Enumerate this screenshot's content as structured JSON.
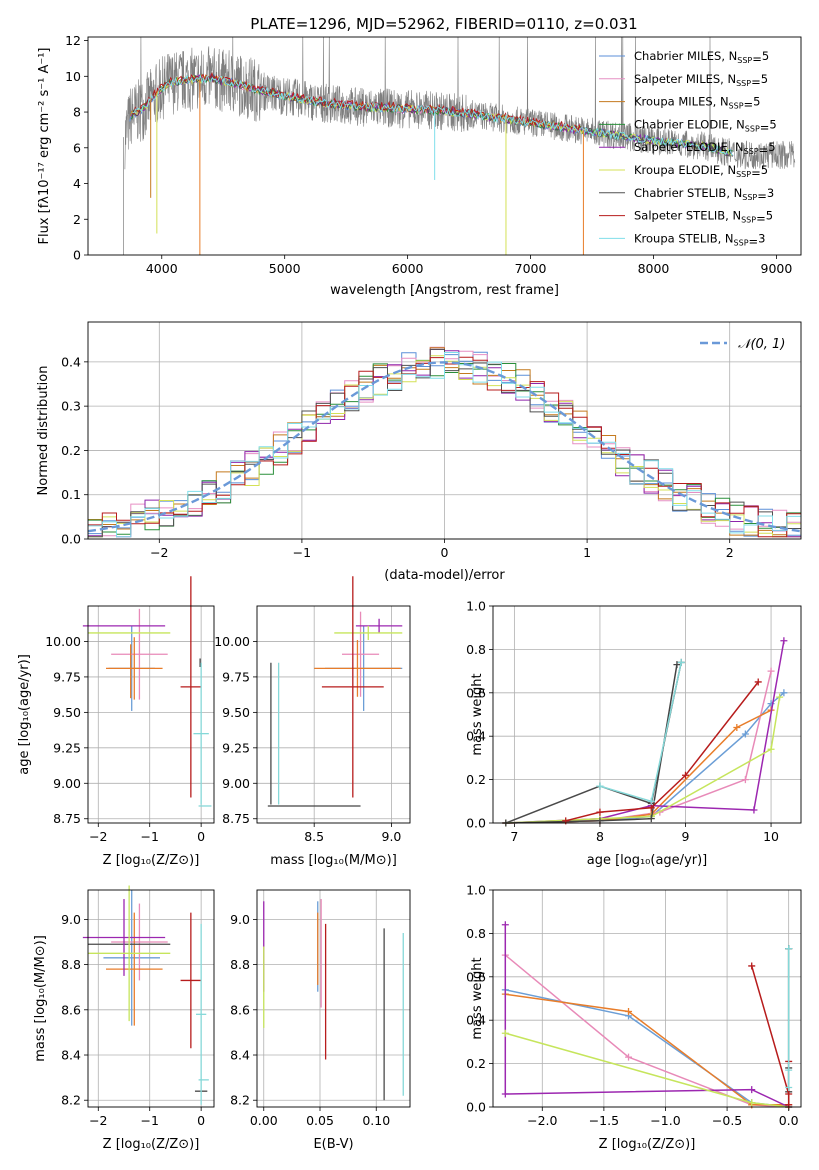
{
  "colors": {
    "series": [
      "#5b8fd8",
      "#e68fc4",
      "#c47a1f",
      "#2a8f3a",
      "#8e24aa",
      "#d4e157",
      "#505050",
      "#b71c1c",
      "#80deea"
    ],
    "panel": [
      "#6b9ed6",
      "#e88ab8",
      "#e87d2a",
      "#4a4a4a",
      "#9c27b0",
      "#c6e55c",
      "#444444",
      "#b71c1c",
      "#85d8d8"
    ],
    "data": "#7f7f7f",
    "gauss": "#6a99d8"
  },
  "chart_data": [
    {
      "type": "line",
      "title": "PLATE=1296, MJD=52962, FIBERID=0110, z=0.031",
      "xlabel": "wavelength [Angstrom, rest frame]",
      "ylabel": "Flux [fλ10⁻¹⁷ erg cm⁻² s⁻¹ A⁻¹]",
      "xlim": [
        3400,
        9200
      ],
      "ylim": [
        0,
        12.2
      ],
      "xticks": [
        "4000",
        "5000",
        "6000",
        "7000",
        "8000",
        "9000"
      ],
      "yticks": [
        "0",
        "2",
        "4",
        "6",
        "8",
        "10",
        "12"
      ],
      "legend": [
        "Chabrier MILES, N",
        "Salpeter MILES, N",
        "Kroupa MILES, N",
        "Chabrier ELODIE, N",
        "Salpeter ELODIE, N",
        "Kroupa ELODIE, N",
        "Chabrier STELIB, N",
        "Salpeter STELIB, N",
        "Kroupa STELIB, N"
      ],
      "legend_nssp": [
        "5",
        "5",
        "5",
        "5",
        "5",
        "5",
        "3",
        "5",
        "3"
      ],
      "continuum": [
        [
          3700,
          6.6
        ],
        [
          3750,
          7.8
        ],
        [
          3850,
          8.2
        ],
        [
          3950,
          9.0
        ],
        [
          4050,
          9.6
        ],
        [
          4200,
          9.8
        ],
        [
          4400,
          9.9
        ],
        [
          4600,
          9.6
        ],
        [
          4800,
          9.2
        ],
        [
          5000,
          8.9
        ],
        [
          5300,
          8.5
        ],
        [
          5600,
          8.3
        ],
        [
          5900,
          8.2
        ],
        [
          6200,
          8.1
        ],
        [
          6500,
          7.9
        ],
        [
          6700,
          7.7
        ],
        [
          7000,
          7.4
        ],
        [
          7300,
          7.1
        ],
        [
          7600,
          6.8
        ],
        [
          8000,
          6.4
        ],
        [
          8400,
          6.1
        ],
        [
          8700,
          5.6
        ]
      ]
    },
    {
      "type": "line",
      "xlabel": "(data-model)/error",
      "ylabel": "Normed distribution",
      "xlim": [
        -2.5,
        2.5
      ],
      "ylim": [
        0,
        0.49
      ],
      "xticks": [
        "−2",
        "−1",
        "0",
        "1",
        "2"
      ],
      "yticks": [
        "0.0",
        "0.1",
        "0.2",
        "0.3",
        "0.4"
      ],
      "legend": "𝒩(0, 1)",
      "bins": [
        -2.5,
        -2.4,
        -2.3,
        -2.2,
        -2.1,
        -2.0,
        -1.9,
        -1.8,
        -1.7,
        -1.6,
        -1.5,
        -1.4,
        -1.3,
        -1.2,
        -1.1,
        -1.0,
        -0.9,
        -0.8,
        -0.7,
        -0.6,
        -0.5,
        -0.4,
        -0.3,
        -0.2,
        -0.1,
        0.0,
        0.1,
        0.2,
        0.3,
        0.4,
        0.5,
        0.6,
        0.7,
        0.8,
        0.9,
        1.0,
        1.1,
        1.2,
        1.3,
        1.4,
        1.5,
        1.6,
        1.7,
        1.8,
        1.9,
        2.0,
        2.1,
        2.2,
        2.3,
        2.4,
        2.5
      ]
    },
    {
      "type": "scatter",
      "xlabel": "Z [log₁₀(Z/Z⊙)]",
      "ylabel": "age  [log₁₀(age/yr)]",
      "xlim": [
        -2.2,
        0.25
      ],
      "ylim": [
        8.72,
        10.25
      ],
      "xticks": [
        "−2",
        "−1",
        "0"
      ],
      "yticks": [
        "8.75",
        "9.00",
        "9.25",
        "9.50",
        "9.75",
        "10.00"
      ]
    },
    {
      "type": "scatter",
      "xlabel": "mass [log₁₀(M/M⊙)]",
      "xlim": [
        8.13,
        9.12
      ],
      "ylim": [
        8.72,
        10.25
      ],
      "xticks": [
        "8.5",
        "9.0"
      ],
      "yticks": [
        "8.75",
        "9.00",
        "9.25",
        "9.50",
        "9.75",
        "10.00"
      ]
    },
    {
      "type": "line",
      "xlabel": "age  [log₁₀(age/yr)]",
      "ylabel": "mass weight",
      "xlim": [
        6.75,
        10.35
      ],
      "ylim": [
        0,
        1.0
      ],
      "xticks": [
        "7",
        "8",
        "9",
        "10"
      ],
      "yticks": [
        "0.0",
        "0.2",
        "0.4",
        "0.6",
        "0.8",
        "1.0"
      ]
    },
    {
      "type": "scatter",
      "xlabel": "Z [log₁₀(Z/Z⊙)]",
      "ylabel": "mass [log₁₀(M/M⊙)]",
      "xlim": [
        -2.2,
        0.25
      ],
      "ylim": [
        8.17,
        9.13
      ],
      "xticks": [
        "−2",
        "−1",
        "0"
      ],
      "yticks": [
        "8.2",
        "8.4",
        "8.6",
        "8.8",
        "9.0"
      ]
    },
    {
      "type": "scatter",
      "xlabel": "E(B-V)",
      "xlim": [
        -0.006,
        0.13
      ],
      "ylim": [
        8.17,
        9.13
      ],
      "xticks": [
        "0.00",
        "0.05",
        "0.10"
      ],
      "yticks": [
        "8.2",
        "8.4",
        "8.6",
        "8.8",
        "9.0"
      ]
    },
    {
      "type": "line",
      "xlabel": "Z [log₁₀(Z/Z⊙)]",
      "ylabel": "mass weight",
      "xlim": [
        -2.4,
        0.1
      ],
      "ylim": [
        0,
        1.0
      ],
      "xticks": [
        "−2.0",
        "−1.5",
        "−1.0",
        "−0.5",
        "0.0"
      ],
      "yticks": [
        "0.0",
        "0.2",
        "0.4",
        "0.6",
        "0.8",
        "1.0"
      ]
    }
  ]
}
